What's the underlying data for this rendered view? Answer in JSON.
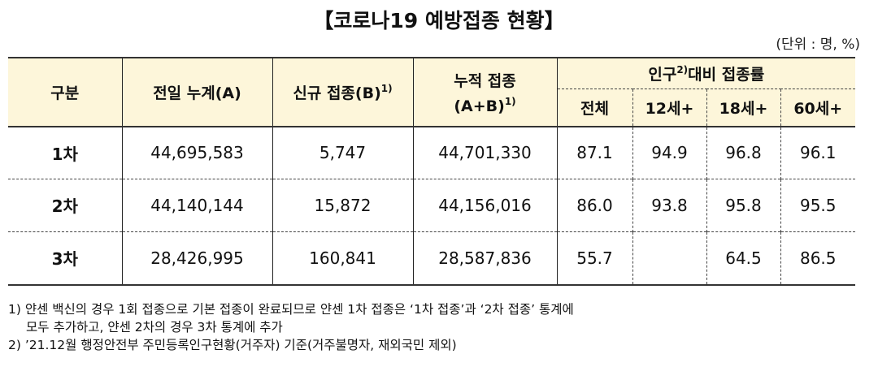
{
  "title": "【코로나19 예방접종 현황】",
  "unit": "(단위 : 명, %)",
  "header": {
    "gubun": "구분",
    "prev_total": "전일 누계(A)",
    "new_dose": "신규 접종(B)",
    "new_dose_sup": "1)",
    "cumulative_line1": "누적 접종",
    "cumulative_line2": "(A+B)",
    "cumulative_sup": "1)",
    "pop_rate_prefix": "인구",
    "pop_rate_sup": "2)",
    "pop_rate_suffix": "대비 접종률",
    "sub_all": "전체",
    "sub_12": "12세+",
    "sub_18": "18세+",
    "sub_60": "60세+"
  },
  "rows": [
    {
      "label": "1차",
      "prev": "44,695,583",
      "new": "5,747",
      "cum": "44,701,330",
      "all": "87.1",
      "r12": "94.9",
      "r18": "96.8",
      "r60": "96.1"
    },
    {
      "label": "2차",
      "prev": "44,140,144",
      "new": "15,872",
      "cum": "44,156,016",
      "all": "86.0",
      "r12": "93.8",
      "r18": "95.8",
      "r60": "95.5"
    },
    {
      "label": "3차",
      "prev": "28,426,995",
      "new": "160,841",
      "cum": "28,587,836",
      "all": "55.7",
      "r12": "",
      "r18": "64.5",
      "r60": "86.5"
    }
  ],
  "notes": {
    "n1_line1": "1) 얀센 백신의 경우 1회 접종으로 기본 접종이 완료되므로 얀센 1차 접종은 ‘1차 접종’과 ‘2차 접종’ 통계에",
    "n1_line2": "모두 추가하고, 얀센 2차의 경우 3차 통계에 추가",
    "n2": "2) ’21.12월 행정안전부 주민등록인구현황(거주자) 기준(거주불명자, 재외국민 제외)"
  }
}
